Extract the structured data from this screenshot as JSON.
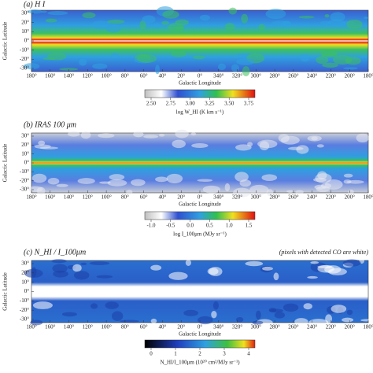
{
  "panels": [
    {
      "label": "(a) H I",
      "y_axis_label": "Galactic Latitude",
      "latitude_ticks": [
        "30°",
        "20°",
        "10°",
        "0°",
        "-10°",
        "-20°",
        "-30°"
      ],
      "longitude_ticks": [
        "180°",
        "160°",
        "140°",
        "120°",
        "100°",
        "80°",
        "60°",
        "40°",
        "20°",
        "0°",
        "340°",
        "320°",
        "300°",
        "280°",
        "260°",
        "240°",
        "220°",
        "200°",
        "180°"
      ],
      "x_axis_label": "Galactic Longitude",
      "colorbar_ticks": [
        "2.50",
        "2.75",
        "3.00",
        "3.25",
        "3.50",
        "3.75"
      ],
      "colorbar_label": "log W_HI (K km s⁻¹)"
    },
    {
      "label": "(b) IRAS 100 μm",
      "y_axis_label": "Galactic Latitude",
      "latitude_ticks": [
        "30°",
        "20°",
        "10°",
        "0°",
        "-10°",
        "-20°",
        "-30°"
      ],
      "longitude_ticks": [
        "180°",
        "160°",
        "140°",
        "120°",
        "100°",
        "80°",
        "60°",
        "40°",
        "20°",
        "0°",
        "340°",
        "320°",
        "300°",
        "280°",
        "260°",
        "240°",
        "220°",
        "200°",
        "180°"
      ],
      "x_axis_label": "Galactic Longitude",
      "colorbar_ticks": [
        "-1.0",
        "-0.5",
        "0.0",
        "0.5",
        "1.0",
        "1.5"
      ],
      "colorbar_label": "log I_100μm (MJy sr⁻¹)"
    },
    {
      "label": "(c) N_HI / I_100μm",
      "note": "(pixels with detected CO are white)",
      "y_axis_label": "Galactic Latitude",
      "latitude_ticks": [
        "30°",
        "20°",
        "10°",
        "0°",
        "-10°",
        "-20°",
        "-30°"
      ],
      "longitude_ticks": [
        "180°",
        "160°",
        "140°",
        "120°",
        "100°",
        "80°",
        "60°",
        "40°",
        "20°",
        "0°",
        "340°",
        "320°",
        "300°",
        "280°",
        "260°",
        "240°",
        "220°",
        "200°",
        "180°"
      ],
      "x_axis_label": "Galactic Longitude",
      "colorbar_ticks": [
        "0",
        "1",
        "2",
        "3",
        "4"
      ],
      "colorbar_label": "N_HI/I_100μm (10²⁰ cm²/MJy sr⁻¹)"
    }
  ]
}
